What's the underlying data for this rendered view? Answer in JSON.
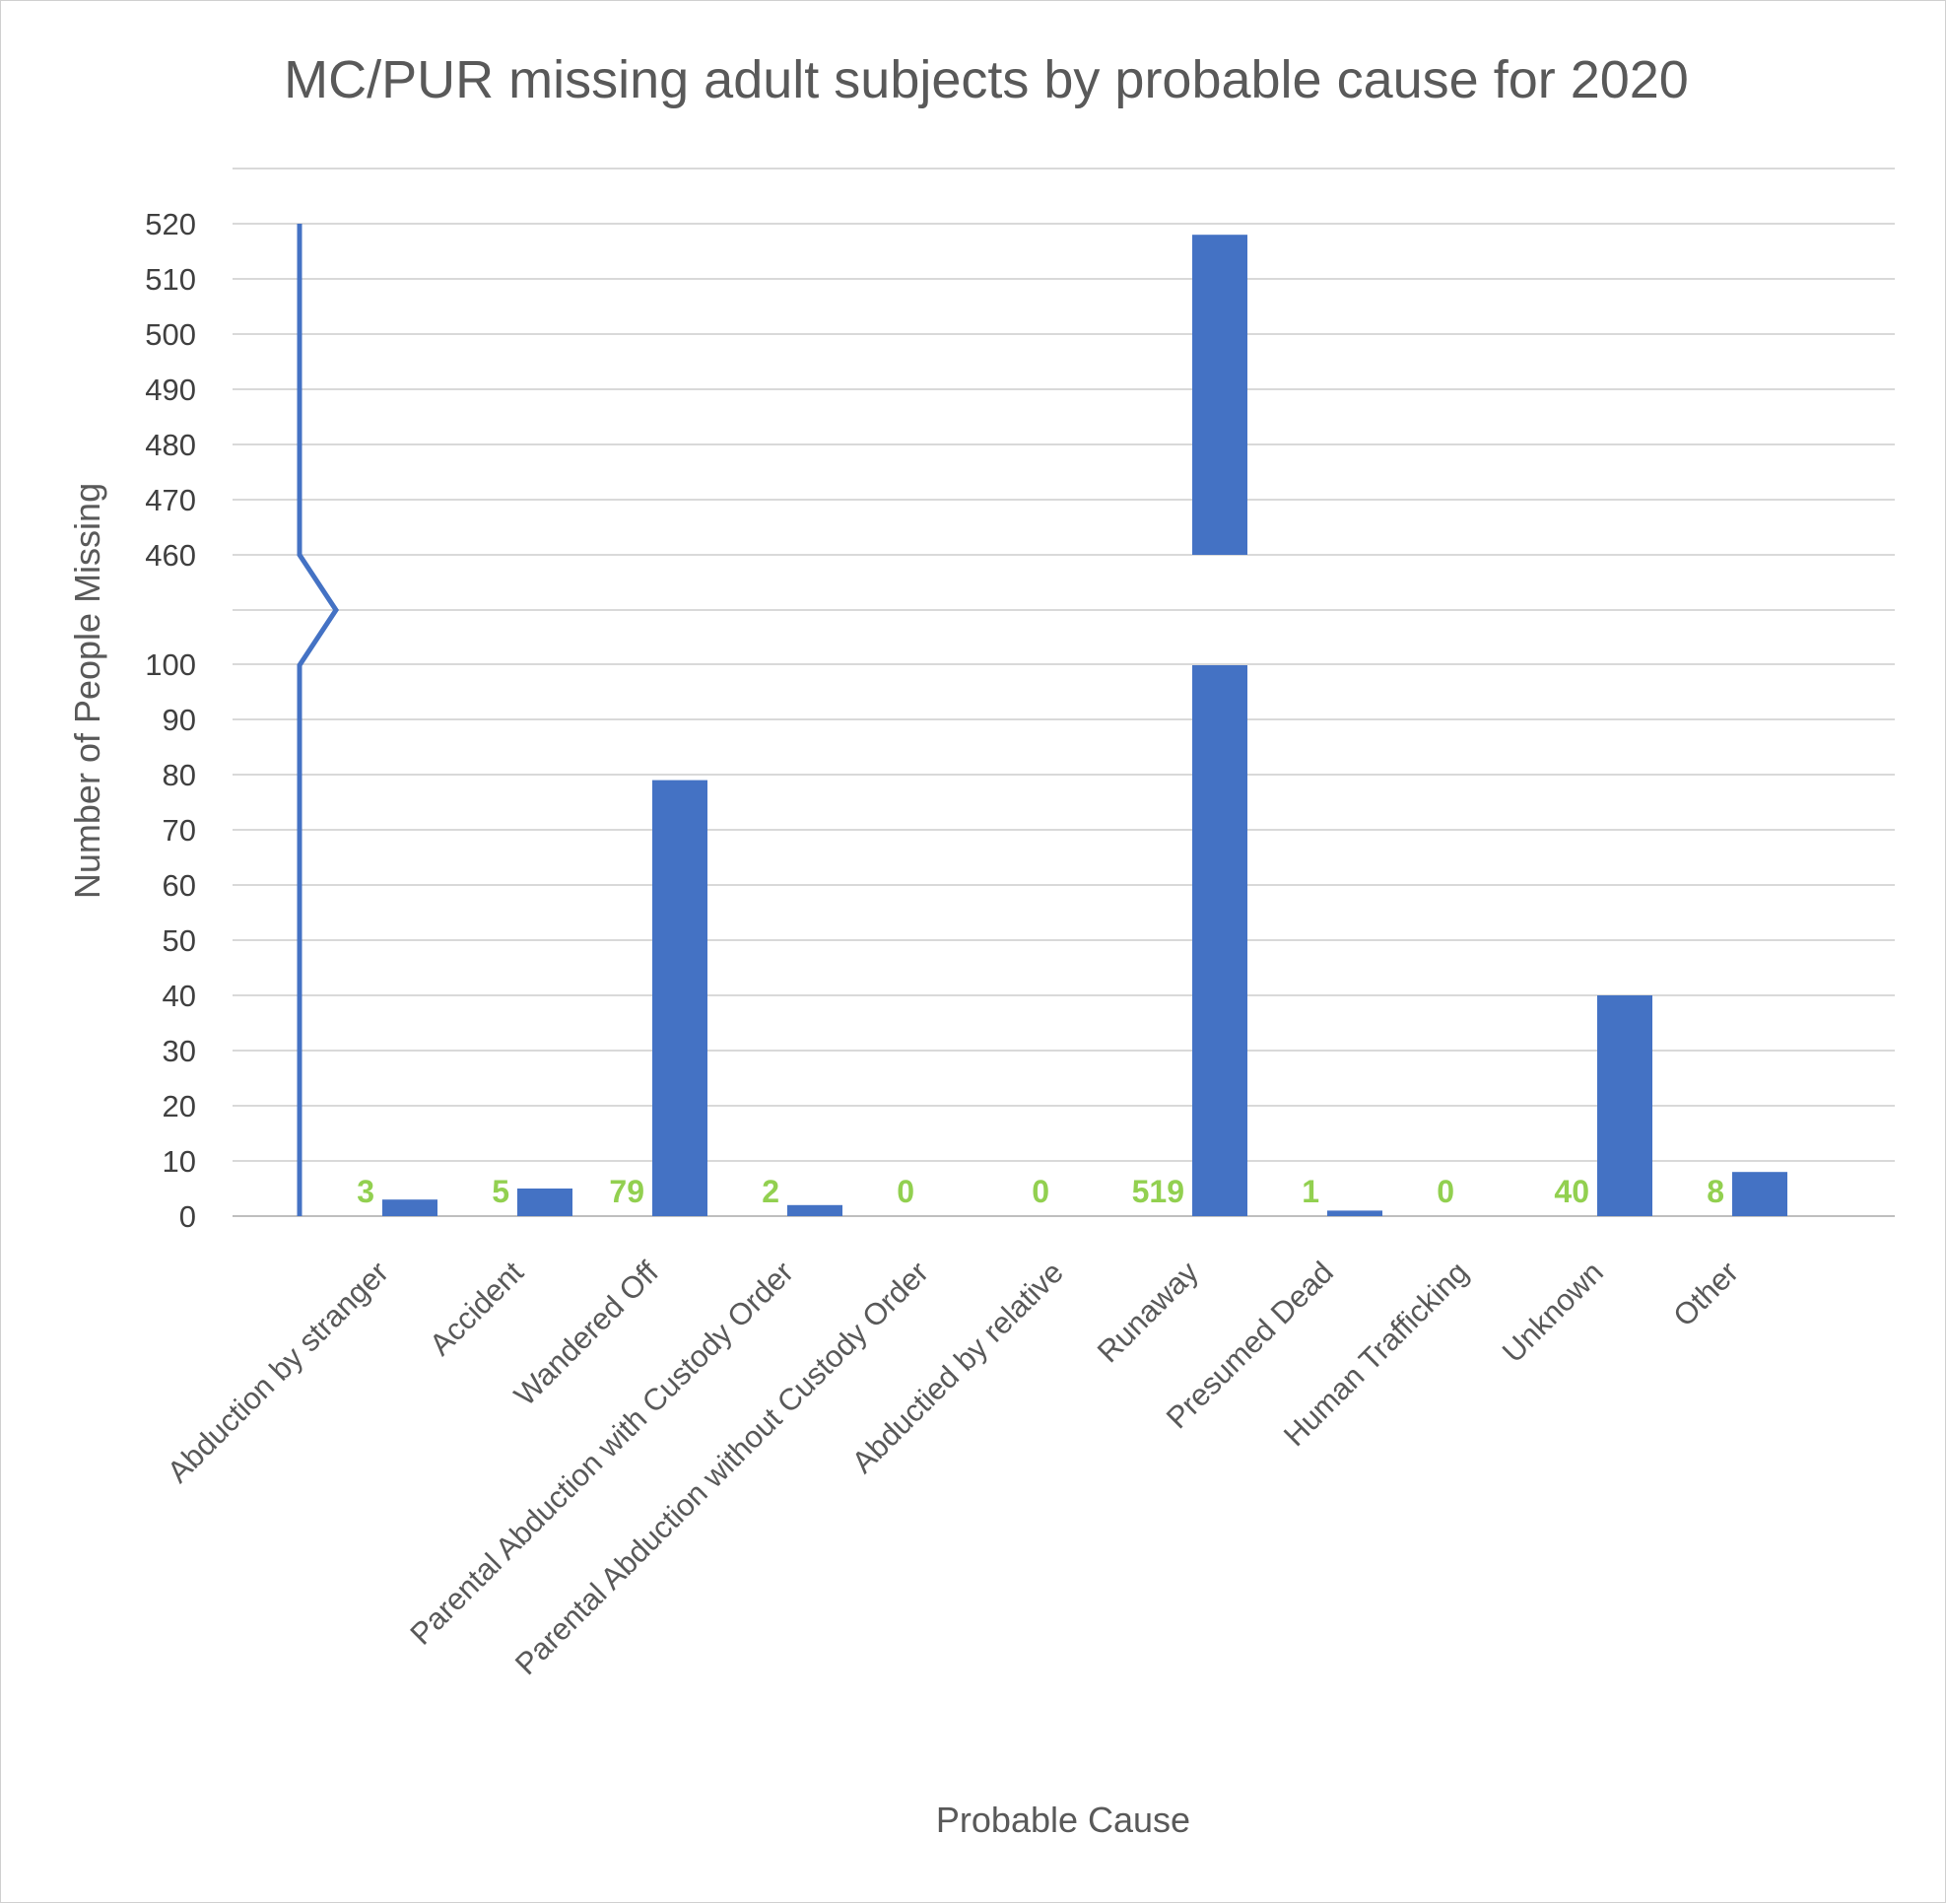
{
  "chart_data": {
    "type": "bar",
    "title": "MC/PUR missing adult subjects by probable cause for 2020",
    "xlabel": "Probable Cause",
    "ylabel": "Number of People Missing",
    "categories": [
      "Abduction by stranger",
      "Accident",
      "Wandered Off",
      "Parental Abduction with Custody Order",
      "Parental Abduction without Custody Order",
      "Abductied by relative",
      "Runaway",
      "Presumed Dead",
      "Human Trafficking",
      "Unknown",
      "Other"
    ],
    "values": [
      3,
      5,
      79,
      2,
      0,
      0,
      519,
      1,
      0,
      40,
      8
    ],
    "data_labels": [
      "3",
      "5",
      "79",
      "2",
      "0",
      "0",
      "519",
      "1",
      "0",
      "40",
      "8"
    ],
    "axis_break": {
      "lower": [
        0,
        100
      ],
      "upper": [
        460,
        520
      ]
    },
    "yticks": [
      "0",
      "10",
      "20",
      "30",
      "40",
      "50",
      "60",
      "70",
      "80",
      "90",
      "100",
      "460",
      "470",
      "480",
      "490",
      "500",
      "510",
      "520"
    ],
    "grid": true,
    "legend": "none",
    "colors": {
      "bar": "#4472c4",
      "label": "#92d050",
      "axis_break": "#4472c4"
    }
  }
}
